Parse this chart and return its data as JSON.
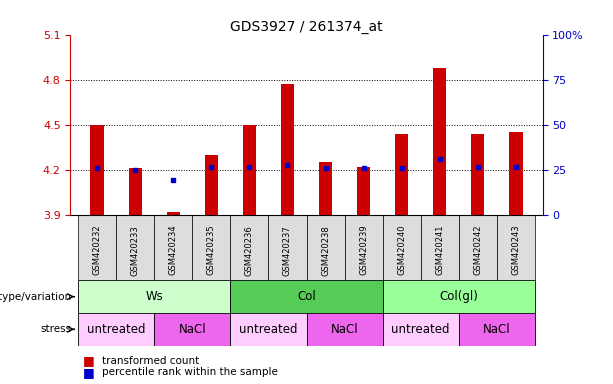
{
  "title": "GDS3927 / 261374_at",
  "samples": [
    "GSM420232",
    "GSM420233",
    "GSM420234",
    "GSM420235",
    "GSM420236",
    "GSM420237",
    "GSM420238",
    "GSM420239",
    "GSM420240",
    "GSM420241",
    "GSM420242",
    "GSM420243"
  ],
  "bar_values": [
    4.5,
    4.21,
    3.92,
    4.3,
    4.5,
    4.77,
    4.25,
    4.22,
    4.44,
    4.88,
    4.44,
    4.45
  ],
  "dot_values": [
    4.21,
    4.2,
    4.13,
    4.22,
    4.22,
    4.23,
    4.21,
    4.21,
    4.21,
    4.27,
    4.22,
    4.22
  ],
  "bar_bottom": 3.9,
  "ylim_left": [
    3.9,
    5.1
  ],
  "ylim_right": [
    0,
    100
  ],
  "yticks_left": [
    3.9,
    4.2,
    4.5,
    4.8,
    5.1
  ],
  "yticks_right": [
    0,
    25,
    50,
    75,
    100
  ],
  "bar_color": "#cc0000",
  "dot_color": "#0000cc",
  "bg_color": "#ffffff",
  "left_axis_color": "#cc0000",
  "right_axis_color": "#0000cc",
  "bar_width": 0.35,
  "genotype_groups": [
    {
      "label": "Ws",
      "start": 0,
      "end": 3,
      "color": "#ccffcc"
    },
    {
      "label": "Col",
      "start": 4,
      "end": 7,
      "color": "#55cc55"
    },
    {
      "label": "Col(gl)",
      "start": 8,
      "end": 11,
      "color": "#99ff99"
    }
  ],
  "stress_groups": [
    {
      "label": "untreated",
      "start": 0,
      "end": 1,
      "color": "#ffccff"
    },
    {
      "label": "NaCl",
      "start": 2,
      "end": 3,
      "color": "#ee66ee"
    },
    {
      "label": "untreated",
      "start": 4,
      "end": 5,
      "color": "#ffccff"
    },
    {
      "label": "NaCl",
      "start": 6,
      "end": 7,
      "color": "#ee66ee"
    },
    {
      "label": "untreated",
      "start": 8,
      "end": 9,
      "color": "#ffccff"
    },
    {
      "label": "NaCl",
      "start": 10,
      "end": 11,
      "color": "#ee66ee"
    }
  ],
  "legend_items": [
    {
      "label": "transformed count",
      "color": "#cc0000"
    },
    {
      "label": "percentile rank within the sample",
      "color": "#0000cc"
    }
  ]
}
